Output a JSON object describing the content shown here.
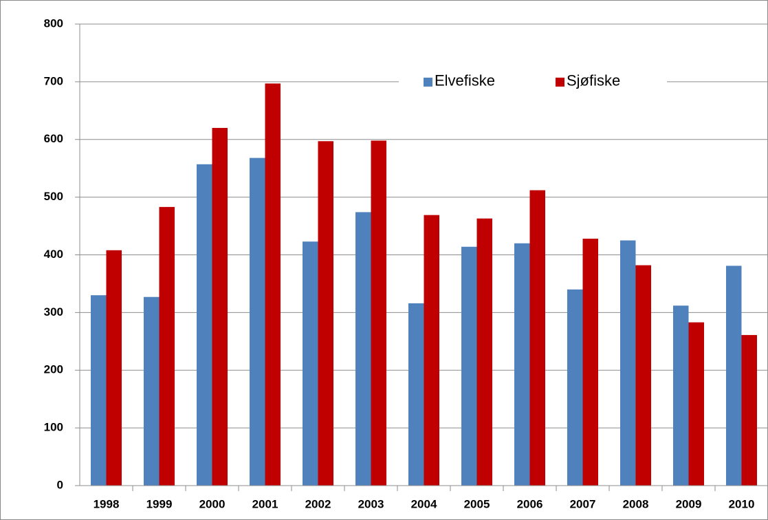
{
  "chart_data": {
    "type": "bar",
    "categories": [
      "1998",
      "1999",
      "2000",
      "2001",
      "2002",
      "2003",
      "2004",
      "2005",
      "2006",
      "2007",
      "2008",
      "2009",
      "2010"
    ],
    "series": [
      {
        "name": "Elvefiske",
        "color": "#4f81bd",
        "values": [
          330,
          327,
          557,
          568,
          423,
          474,
          316,
          414,
          420,
          340,
          425,
          312,
          381
        ]
      },
      {
        "name": "Sjøfiske",
        "color": "#c00000",
        "values": [
          408,
          483,
          620,
          697,
          597,
          598,
          469,
          463,
          512,
          428,
          382,
          283,
          261
        ]
      }
    ],
    "ylim": [
      0,
      800
    ],
    "yticks": [
      0,
      100,
      200,
      300,
      400,
      500,
      600,
      700,
      800
    ],
    "grid": true,
    "legend": "top"
  }
}
